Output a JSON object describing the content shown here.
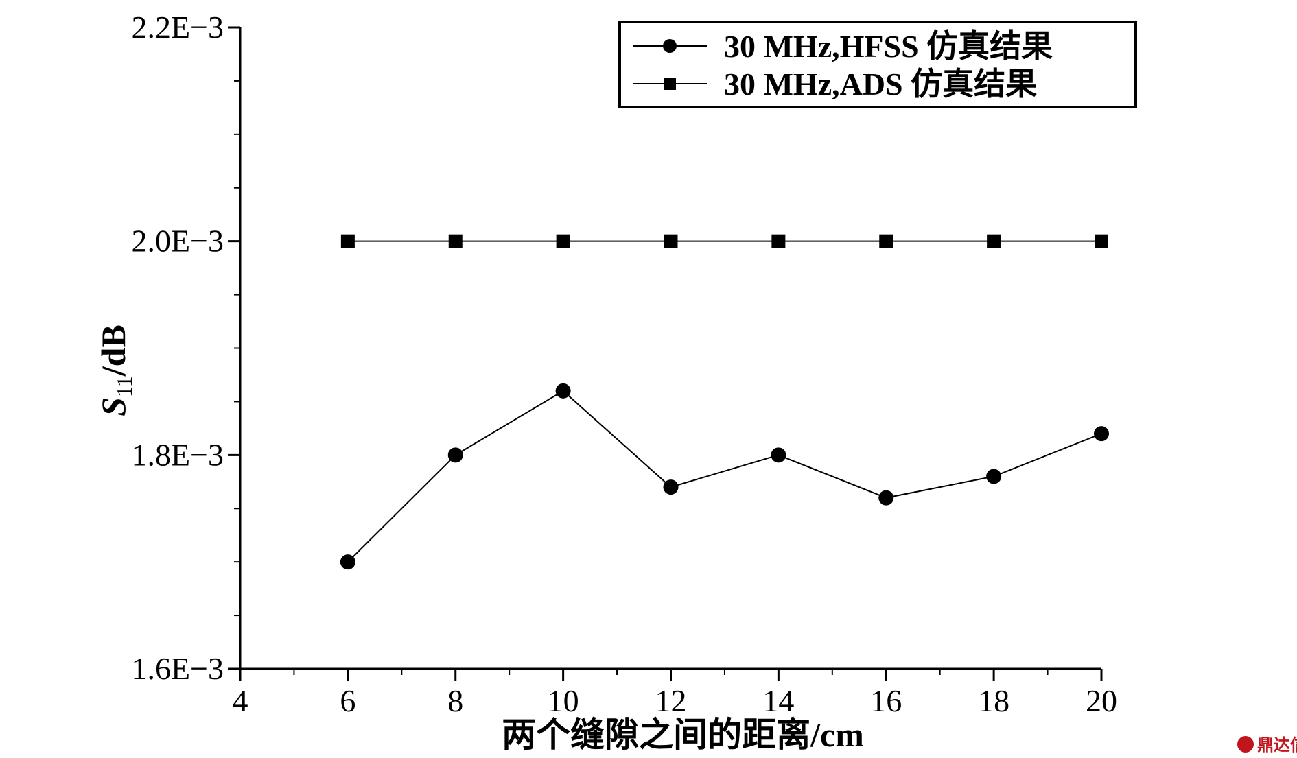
{
  "chart_data": {
    "type": "line",
    "xlabel": "两个缝隙之间的距离/cm",
    "ylabel": {
      "main": "S",
      "sub": "11",
      "unit": "/dB"
    },
    "xlim": [
      4,
      20
    ],
    "ylim": [
      0.0016,
      0.0022
    ],
    "x_ticks": [
      4,
      6,
      8,
      10,
      12,
      14,
      16,
      18,
      20
    ],
    "x_tick_labels": [
      "4",
      "6",
      "8",
      "10",
      "12",
      "14",
      "16",
      "18",
      "20"
    ],
    "y_ticks": [
      0.0016,
      0.0018,
      0.002,
      0.0022
    ],
    "y_tick_labels": [
      "1.6E−3",
      "1.8E−3",
      "2.0E−3",
      "2.2E−3"
    ],
    "x_minor_step": 1,
    "y_minor_step": 5e-05,
    "grid": false,
    "legend_position": "top-right",
    "series": [
      {
        "name": "30 MHz,HFSS 仿真结果",
        "marker": "circle",
        "color": "#000000",
        "x": [
          6,
          8,
          10,
          12,
          14,
          16,
          18,
          20
        ],
        "y": [
          0.0017,
          0.0018,
          0.00186,
          0.00177,
          0.0018,
          0.00176,
          0.00178,
          0.00182
        ]
      },
      {
        "name": "30 MHz,ADS 仿真结果",
        "marker": "square",
        "color": "#000000",
        "x": [
          6,
          8,
          10,
          12,
          14,
          16,
          18,
          20
        ],
        "y": [
          0.002,
          0.002,
          0.002,
          0.002,
          0.002,
          0.002,
          0.002,
          0.002
        ]
      }
    ]
  },
  "watermark": {
    "text": "鼎达信",
    "color": "#c0151b"
  }
}
